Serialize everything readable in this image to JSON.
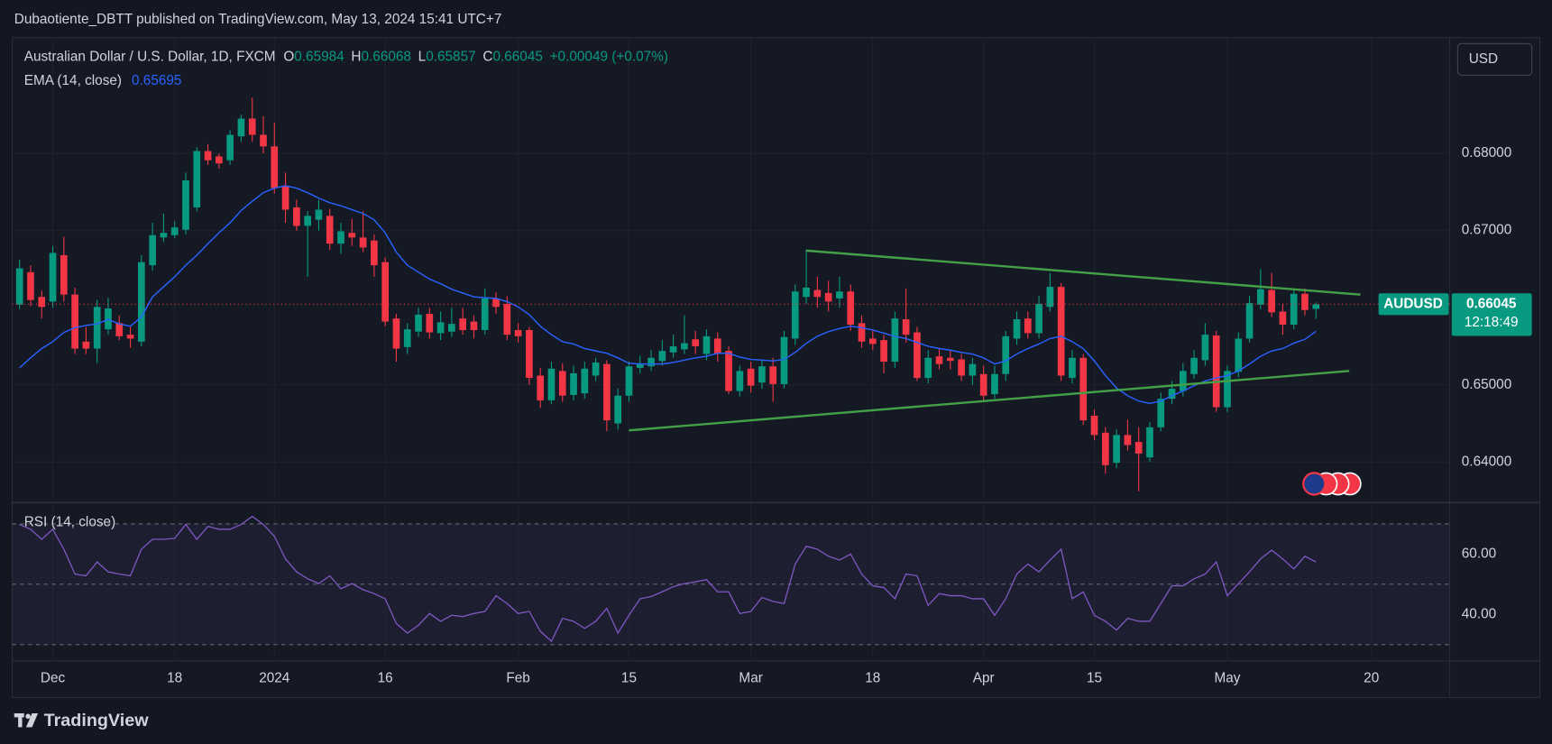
{
  "header": {
    "publisher": "Dubaotiente_DBTT published on TradingView.com, May 13, 2024 15:41 UTC+7"
  },
  "currency_button": "USD",
  "footer": {
    "brand": "TradingView"
  },
  "chart_data": [
    {
      "type": "candlestick",
      "title": "Australian Dollar / U.S. Dollar, 1D, FXCM",
      "ohlc_labels": [
        "O",
        "H",
        "L",
        "C"
      ],
      "change_label": "+0.00049 (+0.07%)",
      "symbol_label": "AUDUSD",
      "countdown": "12:18:49",
      "categories": [
        null,
        null,
        null,
        "Dec",
        null,
        null,
        null,
        null,
        null,
        null,
        null,
        null,
        null,
        null,
        "18",
        null,
        null,
        null,
        null,
        null,
        null,
        null,
        null,
        "2024",
        null,
        null,
        null,
        null,
        null,
        null,
        null,
        null,
        null,
        "16",
        null,
        null,
        null,
        null,
        null,
        null,
        null,
        null,
        null,
        null,
        null,
        "Feb",
        null,
        null,
        null,
        null,
        null,
        null,
        null,
        null,
        null,
        "15",
        null,
        null,
        null,
        null,
        null,
        null,
        null,
        null,
        null,
        null,
        "Mar",
        null,
        null,
        null,
        null,
        null,
        null,
        null,
        null,
        null,
        null,
        "18",
        null,
        null,
        null,
        null,
        null,
        null,
        null,
        null,
        null,
        "Apr",
        null,
        null,
        null,
        null,
        null,
        null,
        null,
        null,
        null,
        "15",
        null,
        null,
        null,
        null,
        null,
        null,
        null,
        null,
        null,
        null,
        null,
        "May",
        null,
        null,
        null,
        null,
        null,
        null,
        null,
        null,
        null,
        null,
        null,
        null,
        "20"
      ],
      "series": [
        {
          "name": "AUDUSD",
          "up_color": "#089981",
          "down_color": "#f23645",
          "open": [
            0.6604,
            0.6646,
            0.6614,
            0.6608,
            0.6668,
            0.6617,
            0.6556,
            0.6547,
            0.6572,
            0.658,
            0.6565,
            0.6556,
            0.6655,
            0.6691,
            0.6694,
            0.6701,
            0.673,
            0.6803,
            0.6796,
            0.6791,
            0.6822,
            0.6845,
            0.6824,
            0.6809,
            0.6758,
            0.673,
            0.6706,
            0.6714,
            0.6719,
            0.6683,
            0.6697,
            0.6691,
            0.6687,
            0.6659,
            0.6586,
            0.6549,
            0.6569,
            0.6592,
            0.6567,
            0.6569,
            0.6586,
            0.6582,
            0.6571,
            0.6612,
            0.6605,
            0.6571,
            0.6571,
            0.6512,
            0.648,
            0.6518,
            0.6487,
            0.6489,
            0.6512,
            0.6527,
            0.645,
            0.6486,
            0.6522,
            0.6524,
            0.6531,
            0.6542,
            0.6546,
            0.6559,
            0.654,
            0.656,
            0.6544,
            0.6492,
            0.6521,
            0.6503,
            0.6524,
            0.6501,
            0.656,
            0.6614,
            0.6623,
            0.6619,
            0.6612,
            0.6621,
            0.658,
            0.656,
            0.6558,
            0.653,
            0.6585,
            0.6568,
            0.6509,
            0.6537,
            0.6535,
            0.6533,
            0.6512,
            0.6514,
            0.6488,
            0.6514,
            0.656,
            0.6586,
            0.6567,
            0.6601,
            0.6627,
            0.6509,
            0.6535,
            0.646,
            0.6438,
            0.6399,
            0.6435,
            0.6426,
            0.6406,
            0.6445,
            0.6482,
            0.6492,
            0.6514,
            0.6532,
            0.6564,
            0.6471,
            0.6517,
            0.656,
            0.6604,
            0.6623,
            0.6595,
            0.6578,
            0.6618,
            0.65984,
            null,
            null,
            null,
            null,
            null
          ],
          "high": [
            0.6662,
            0.6655,
            0.6622,
            0.668,
            0.6692,
            0.6626,
            0.6575,
            0.661,
            0.6613,
            0.659,
            0.6575,
            0.6668,
            0.671,
            0.6722,
            0.6712,
            0.6775,
            0.6808,
            0.6812,
            0.68,
            0.683,
            0.685,
            0.6872,
            0.6848,
            0.684,
            0.6775,
            0.674,
            0.6725,
            0.674,
            0.6728,
            0.671,
            0.6715,
            0.6725,
            0.6695,
            0.6665,
            0.6592,
            0.658,
            0.66,
            0.66,
            0.6595,
            0.66,
            0.66,
            0.659,
            0.6625,
            0.662,
            0.6615,
            0.658,
            0.6575,
            0.6522,
            0.653,
            0.6528,
            0.6525,
            0.653,
            0.6535,
            0.6532,
            0.6495,
            0.653,
            0.6538,
            0.6545,
            0.6558,
            0.6565,
            0.659,
            0.657,
            0.6572,
            0.6568,
            0.655,
            0.6525,
            0.653,
            0.6532,
            0.6535,
            0.657,
            0.663,
            0.6675,
            0.664,
            0.6635,
            0.664,
            0.663,
            0.659,
            0.657,
            0.6565,
            0.6595,
            0.6625,
            0.6575,
            0.6545,
            0.6548,
            0.6545,
            0.654,
            0.6535,
            0.6525,
            0.6525,
            0.657,
            0.6595,
            0.6595,
            0.6615,
            0.6645,
            0.6632,
            0.6545,
            0.654,
            0.6468,
            0.6445,
            0.6442,
            0.6455,
            0.6445,
            0.6452,
            0.649,
            0.6505,
            0.6528,
            0.6545,
            0.658,
            0.657,
            0.6525,
            0.6568,
            0.6615,
            0.665,
            0.6645,
            0.6605,
            0.6625,
            0.6625,
            0.66068,
            null,
            null,
            null,
            null,
            null
          ],
          "low": [
            0.6598,
            0.6602,
            0.6586,
            0.66,
            0.6608,
            0.654,
            0.654,
            0.6528,
            0.6565,
            0.6558,
            0.6548,
            0.655,
            0.6648,
            0.6685,
            0.669,
            0.6695,
            0.6725,
            0.6785,
            0.678,
            0.6785,
            0.6815,
            0.6815,
            0.68,
            0.6748,
            0.671,
            0.67,
            0.664,
            0.67,
            0.6675,
            0.667,
            0.668,
            0.6672,
            0.664,
            0.6576,
            0.653,
            0.654,
            0.6562,
            0.656,
            0.6558,
            0.6562,
            0.6565,
            0.656,
            0.6565,
            0.6592,
            0.6558,
            0.6555,
            0.65,
            0.647,
            0.6475,
            0.6478,
            0.648,
            0.6482,
            0.6505,
            0.644,
            0.6442,
            0.6478,
            0.6515,
            0.6518,
            0.6525,
            0.6535,
            0.654,
            0.654,
            0.6532,
            0.653,
            0.6488,
            0.6485,
            0.649,
            0.6495,
            0.6478,
            0.6495,
            0.6552,
            0.6605,
            0.66,
            0.6595,
            0.66,
            0.657,
            0.6548,
            0.6545,
            0.6515,
            0.6522,
            0.6555,
            0.6505,
            0.6502,
            0.652,
            0.652,
            0.6505,
            0.65,
            0.648,
            0.6482,
            0.6505,
            0.6552,
            0.656,
            0.656,
            0.6595,
            0.6505,
            0.6502,
            0.6448,
            0.6428,
            0.6385,
            0.6392,
            0.6415,
            0.6362,
            0.64,
            0.644,
            0.6475,
            0.6485,
            0.6508,
            0.6525,
            0.6465,
            0.6465,
            0.651,
            0.6555,
            0.6598,
            0.6588,
            0.6565,
            0.6572,
            0.659,
            0.65857,
            null,
            null,
            null,
            null,
            null
          ],
          "close": [
            0.6651,
            0.661,
            0.6601,
            0.6671,
            0.6617,
            0.6547,
            0.6547,
            0.6601,
            0.6599,
            0.6563,
            0.656,
            0.6659,
            0.6694,
            0.6697,
            0.6704,
            0.6765,
            0.6803,
            0.6791,
            0.6787,
            0.6824,
            0.6845,
            0.6824,
            0.6809,
            0.6755,
            0.6727,
            0.6706,
            0.6719,
            0.6727,
            0.6683,
            0.6699,
            0.6691,
            0.6678,
            0.6655,
            0.6582,
            0.6547,
            0.6572,
            0.6591,
            0.6568,
            0.6581,
            0.6579,
            0.6571,
            0.6571,
            0.6612,
            0.6601,
            0.6565,
            0.6563,
            0.6509,
            0.648,
            0.6521,
            0.6486,
            0.6515,
            0.6521,
            0.6529,
            0.6454,
            0.6486,
            0.6524,
            0.6527,
            0.6535,
            0.6544,
            0.655,
            0.6554,
            0.655,
            0.6563,
            0.654,
            0.6492,
            0.6518,
            0.6499,
            0.6524,
            0.6501,
            0.6562,
            0.6621,
            0.6626,
            0.6614,
            0.6608,
            0.6621,
            0.6578,
            0.6556,
            0.6553,
            0.653,
            0.6586,
            0.6565,
            0.6509,
            0.6535,
            0.6527,
            0.6531,
            0.6512,
            0.6527,
            0.6486,
            0.6514,
            0.6563,
            0.6585,
            0.6567,
            0.6605,
            0.6627,
            0.6512,
            0.6535,
            0.6454,
            0.6435,
            0.6396,
            0.6435,
            0.6422,
            0.6411,
            0.6445,
            0.6482,
            0.6495,
            0.6518,
            0.6535,
            0.6565,
            0.6471,
            0.6518,
            0.656,
            0.6606,
            0.6624,
            0.6594,
            0.6578,
            0.6618,
            0.6597,
            0.66045,
            null,
            null,
            null,
            null,
            null
          ]
        },
        {
          "name": "EMA (14, close)",
          "color": "#2962ff",
          "values": [
            0.6522,
            0.6535,
            0.6547,
            0.6556,
            0.6568,
            0.6574,
            0.6577,
            0.6579,
            0.6585,
            0.6579,
            0.6576,
            0.6588,
            0.6614,
            0.6627,
            0.664,
            0.6655,
            0.6668,
            0.6683,
            0.6697,
            0.671,
            0.6726,
            0.6738,
            0.6749,
            0.6755,
            0.6758,
            0.6755,
            0.6749,
            0.6742,
            0.6736,
            0.6732,
            0.6727,
            0.6722,
            0.6714,
            0.6697,
            0.6672,
            0.6655,
            0.6646,
            0.6637,
            0.6631,
            0.6624,
            0.6619,
            0.6614,
            0.6613,
            0.6612,
            0.6608,
            0.6601,
            0.6591,
            0.6576,
            0.6565,
            0.6556,
            0.6553,
            0.6547,
            0.6544,
            0.6541,
            0.6535,
            0.6528,
            0.6527,
            0.6527,
            0.6527,
            0.6529,
            0.6532,
            0.6535,
            0.6537,
            0.6541,
            0.6541,
            0.6536,
            0.6533,
            0.6532,
            0.6531,
            0.6533,
            0.6542,
            0.6554,
            0.6563,
            0.6569,
            0.6573,
            0.6576,
            0.6574,
            0.6571,
            0.6567,
            0.6563,
            0.656,
            0.6555,
            0.655,
            0.6547,
            0.6545,
            0.6542,
            0.654,
            0.6535,
            0.6527,
            0.6531,
            0.654,
            0.6547,
            0.6553,
            0.656,
            0.6563,
            0.6556,
            0.6547,
            0.6531,
            0.6512,
            0.6496,
            0.6486,
            0.6479,
            0.6476,
            0.6479,
            0.6486,
            0.6492,
            0.6499,
            0.6505,
            0.6509,
            0.6512,
            0.6518,
            0.6527,
            0.6537,
            0.6544,
            0.6547,
            0.6554,
            0.6559,
            0.65695,
            null,
            null,
            null,
            null,
            null
          ]
        }
      ],
      "trendlines": [
        {
          "color": "#43a047",
          "x": [
            71,
            121
          ],
          "y": [
            0.6674,
            0.6617
          ]
        },
        {
          "color": "#43a047",
          "x": [
            55,
            120
          ],
          "y": [
            0.6441,
            0.6518
          ]
        }
      ],
      "price_line_color": "#f23645",
      "ylim": [
        0.635,
        0.695
      ],
      "yticks": [
        {
          "value": 0.64,
          "label": "0.64000"
        },
        {
          "value": 0.65,
          "label": "0.65000"
        },
        {
          "value": 0.67,
          "label": "0.67000"
        },
        {
          "value": 0.68,
          "label": "0.68000"
        }
      ],
      "grid": true
    },
    {
      "type": "line",
      "title": "RSI (14, close)",
      "series": [
        {
          "name": "RSI (14, close)",
          "color": "#7e57c2",
          "values": [
            69.8,
            68.2,
            64.9,
            68.2,
            61.6,
            53.4,
            52.8,
            57.4,
            54.1,
            53.4,
            52.8,
            61.6,
            64.9,
            64.9,
            65.2,
            69.8,
            64.9,
            69.2,
            68.2,
            68.2,
            69.8,
            72.5,
            69.8,
            65.9,
            58.4,
            54.1,
            51.8,
            50.2,
            52.8,
            48.5,
            50.2,
            48.2,
            46.9,
            45.2,
            37,
            33.8,
            36.4,
            40.3,
            37.7,
            39.7,
            39.3,
            40.3,
            41.0,
            46.2,
            43.6,
            40.3,
            41.0,
            34.4,
            31.1,
            38.7,
            37.7,
            35.4,
            37.7,
            42.0,
            33.8,
            39.7,
            45.2,
            45.9,
            47.5,
            49.2,
            50.2,
            50.8,
            51.5,
            47.5,
            47.5,
            40.3,
            41.0,
            45.6,
            44.3,
            43.6,
            56.7,
            62.6,
            61.6,
            59.3,
            58.0,
            60,
            53.4,
            49.5,
            48.9,
            45.2,
            53.4,
            52.8,
            43.0,
            46.9,
            46.2,
            46.2,
            45.2,
            45.2,
            39.7,
            45.2,
            53.4,
            56.7,
            54.1,
            58.0,
            61.6,
            45.2,
            47.5,
            39.7,
            37.7,
            34.8,
            38.7,
            37.7,
            37.7,
            43.6,
            49.5,
            49.5,
            51.8,
            53.4,
            57.4,
            46.2,
            50.2,
            54.1,
            58.4,
            61.3,
            58.4,
            55.1,
            59.3,
            57.4,
            null,
            null,
            null,
            null,
            null
          ]
        }
      ],
      "levels": [
        70,
        50,
        30
      ],
      "ylim": [
        24.6,
        76.4
      ],
      "yticks": [
        {
          "value": 40,
          "label": "40.00"
        },
        {
          "value": 60,
          "label": "60.00"
        }
      ]
    }
  ]
}
